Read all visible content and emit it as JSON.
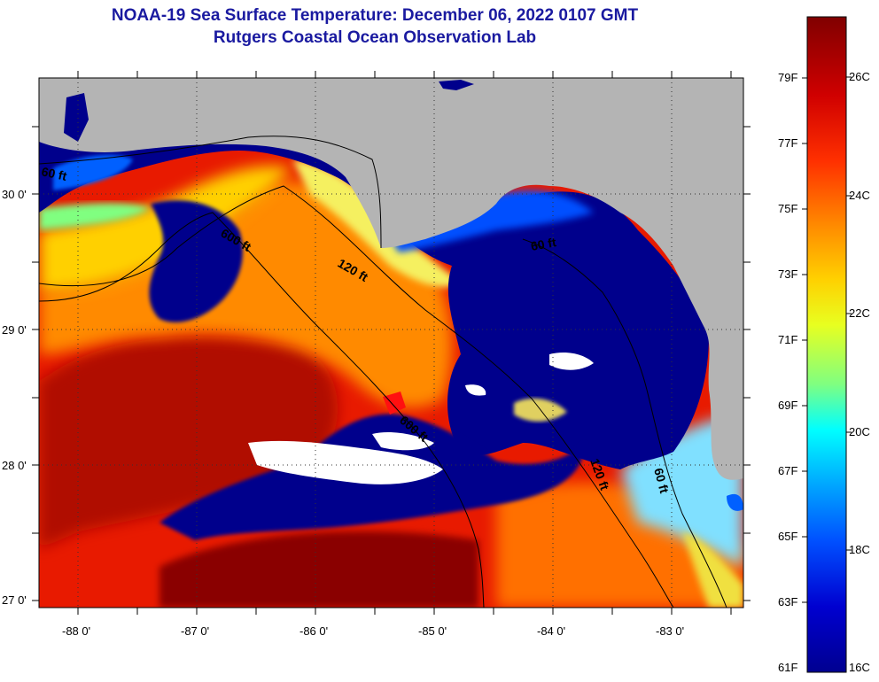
{
  "title": {
    "line1": "NOAA-19 Sea Surface Temperature:  December 06, 2022 0107 GMT",
    "line2": "Rutgers Coastal Ocean Observation Lab"
  },
  "latitude_labels": [
    "30 0'",
    "29 0'",
    "28 0'",
    "27 0'"
  ],
  "longitude_labels": [
    "-88 0'",
    "-87 0'",
    "-86 0'",
    "-85 0'",
    "-84 0'",
    "-83 0'"
  ],
  "depth_contour_labels": [
    "60 ft",
    "600 ft",
    "120 ft",
    "60 ft",
    "600 ft",
    "120 ft",
    "60 ft"
  ],
  "colorbar": {
    "fahrenheit_labels": [
      "79F",
      "77F",
      "75F",
      "73F",
      "71F",
      "69F",
      "67F",
      "65F",
      "63F",
      "61F"
    ],
    "celsius_labels": [
      "26C",
      "24C",
      "22C",
      "20C",
      "18C",
      "16C"
    ],
    "gradient_colors": [
      "#800000",
      "#d00000",
      "#ff3000",
      "#ff8c00",
      "#ffd000",
      "#e8ff20",
      "#80ff80",
      "#00ffff",
      "#00a0ff",
      "#0050ff",
      "#0000d0",
      "#000090"
    ]
  },
  "colors": {
    "land": "#b4b4b4",
    "cold_water": "#00008c",
    "cloud": "#ffffff",
    "title": "#1a1aa0"
  }
}
